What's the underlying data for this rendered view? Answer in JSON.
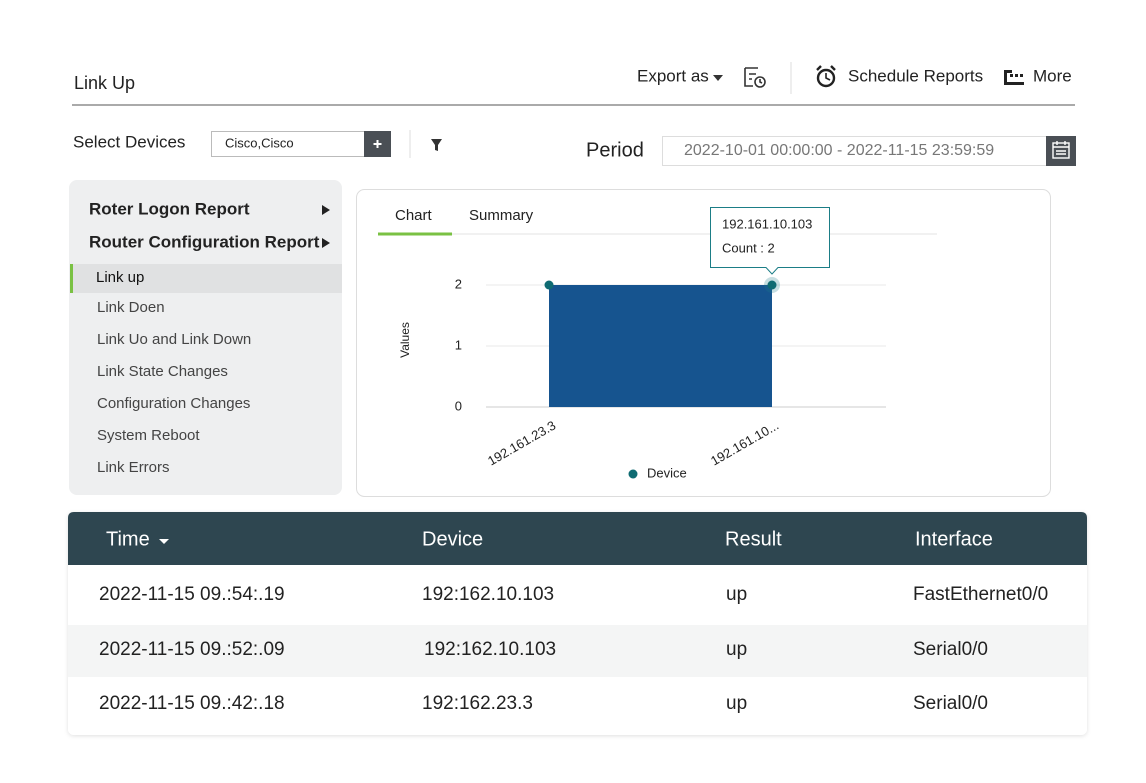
{
  "header": {
    "title": "Link Up",
    "actions": [
      "Export as",
      "Schedule Reports",
      "More"
    ]
  },
  "filters": {
    "select_label": "Select Devices",
    "devices": "Cisco,Cisco",
    "period_label": "Period",
    "period": "2022-10-01 00:00:00 - 2022-11-15 23:59:59"
  },
  "sidebar": {
    "groups": [
      "Roter Logon Report",
      "Router Configuration Report"
    ],
    "items": [
      "Link up",
      "Link Doen",
      "Link Uo and Link Down",
      "Link State Changes",
      "Configuration Changes",
      "System Reboot",
      "Link Errors"
    ]
  },
  "tabs": [
    "Chart",
    "Summary"
  ],
  "chart_data": {
    "type": "area",
    "categories": [
      "192.161.23.3",
      "192.161.10..."
    ],
    "series": [
      {
        "name": "Device",
        "color": "#16548f",
        "values": [
          2,
          2
        ]
      }
    ],
    "ylabel": "Values",
    "ylim": [
      0,
      2
    ],
    "yticks": [
      0,
      1,
      2
    ],
    "grid": true,
    "tooltip": {
      "title": "192.161.10.103",
      "text": "Count : 2"
    }
  },
  "table": {
    "columns": [
      "Time",
      "Device",
      "Result",
      "Interface"
    ],
    "rows": [
      [
        "2022-11-15 09.:54:.19",
        "192:162.10.103",
        "up",
        "FastEthernet0/0"
      ],
      [
        "2022-11-15 09.:52:.09",
        "192:162.10.103",
        "up",
        "Serial0/0"
      ],
      [
        "2022-11-15 09.:42:.18",
        "192:162.23.3",
        "up",
        "Serial0/0"
      ]
    ]
  }
}
